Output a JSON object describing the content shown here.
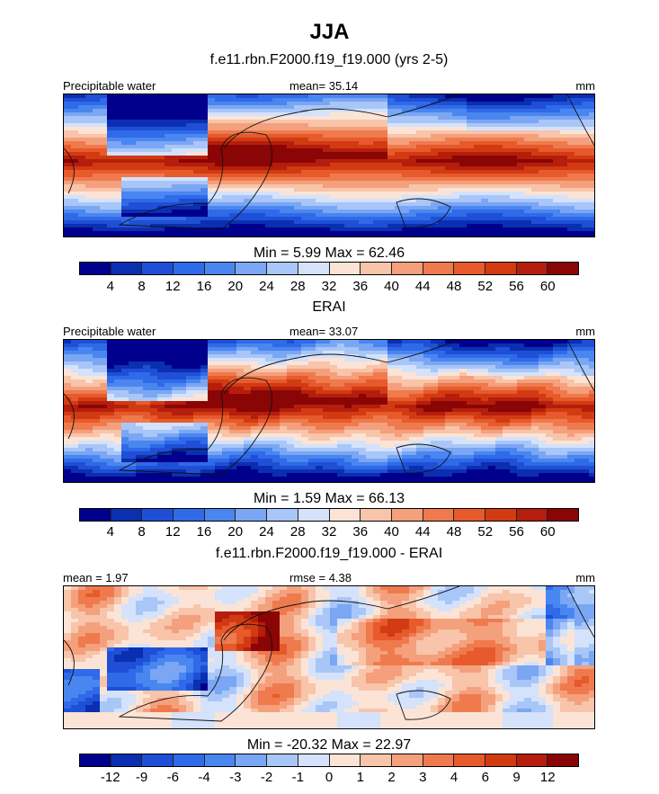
{
  "title": "JJA",
  "panels": [
    {
      "id": "model",
      "title": "f.e11.rbn.F2000.f19_f19.000 (yrs 2-5)",
      "left_label": "Precipitable water",
      "center_label": "mean=  35.14",
      "right_label": "mm",
      "stats": "Min =   5.99 Max =  62.46",
      "colorbar": {
        "colors": [
          "#00008c",
          "#0a2fb0",
          "#1f4fd6",
          "#2f6ae8",
          "#4a86f0",
          "#7aa6f4",
          "#a8c6f7",
          "#d4e2fb",
          "#fbe4d6",
          "#f8c4aa",
          "#f4a07c",
          "#ef7a4e",
          "#e65a2c",
          "#d23b12",
          "#b51e0c",
          "#8a0505"
        ],
        "ticks": [
          "4",
          "8",
          "12",
          "16",
          "20",
          "24",
          "28",
          "32",
          "36",
          "40",
          "44",
          "48",
          "52",
          "56",
          "60"
        ]
      }
    },
    {
      "id": "obs",
      "title": "ERAI",
      "left_label": "Precipitable water",
      "center_label": "mean=  33.07",
      "right_label": "mm",
      "stats": "Min =   1.59 Max =  66.13",
      "colorbar": {
        "colors": [
          "#00008c",
          "#0a2fb0",
          "#1f4fd6",
          "#2f6ae8",
          "#4a86f0",
          "#7aa6f4",
          "#a8c6f7",
          "#d4e2fb",
          "#fbe4d6",
          "#f8c4aa",
          "#f4a07c",
          "#ef7a4e",
          "#e65a2c",
          "#d23b12",
          "#b51e0c",
          "#8a0505"
        ],
        "ticks": [
          "4",
          "8",
          "12",
          "16",
          "20",
          "24",
          "28",
          "32",
          "36",
          "40",
          "44",
          "48",
          "52",
          "56",
          "60"
        ]
      }
    },
    {
      "id": "diff",
      "title": "f.e11.rbn.F2000.f19_f19.000 - ERAI",
      "left_label": "mean =   1.97",
      "center_label": "rmse =   4.38",
      "right_label": "mm",
      "stats": "Min = -20.32 Max =  22.97",
      "colorbar": {
        "colors": [
          "#00008c",
          "#0a2fb0",
          "#1f4fd6",
          "#2f6ae8",
          "#4a86f0",
          "#7aa6f4",
          "#a8c6f7",
          "#d4e2fb",
          "#fbe4d6",
          "#f8c4aa",
          "#f4a07c",
          "#ef7a4e",
          "#e65a2c",
          "#d23b12",
          "#b51e0c",
          "#8a0505"
        ],
        "ticks": [
          "-12",
          "-9",
          "-6",
          "-4",
          "-3",
          "-2",
          "-1",
          "0",
          "1",
          "2",
          "3",
          "4",
          "6",
          "9",
          "12"
        ]
      }
    }
  ]
}
